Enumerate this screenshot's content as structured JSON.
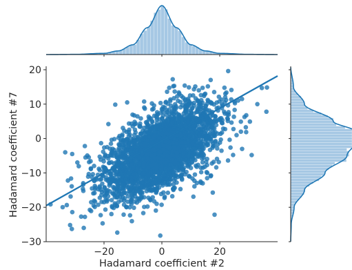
{
  "chart_data": [
    {
      "type": "scatter",
      "title": "",
      "xlabel": "Hadamard coefficient #2",
      "ylabel": "Hadamard coefficient #7",
      "xlim": [
        -40,
        40
      ],
      "ylim": [
        -30,
        21
      ],
      "xticks": [
        -20,
        0,
        20
      ],
      "yticks": [
        -30,
        -20,
        -10,
        0,
        10,
        20
      ],
      "grid": false,
      "legend": "none",
      "colors": {
        "points": "#1f77b4",
        "regression_line": "#1f77b4",
        "histogram_fill": "#a6c8e4"
      },
      "regression_line": {
        "from": {
          "x": -40,
          "y": -19.5
        },
        "to": {
          "x": 40,
          "y": 18.2
        }
      },
      "point_cloud": {
        "n_points": 3000,
        "x_mean": 0,
        "x_std": 9.5,
        "y_mean": -3.5,
        "y_std": 6.3,
        "correlation": 0.6
      },
      "sample_points": [
        {
          "x": -27,
          "y": -26
        },
        {
          "x": -31,
          "y": -4.5
        },
        {
          "x": 33,
          "y": 10
        },
        {
          "x": -12,
          "y": 10.5
        },
        {
          "x": 15,
          "y": 13
        },
        {
          "x": -20,
          "y": -18.5
        }
      ]
    },
    {
      "type": "area",
      "role": "top-marginal-histogram",
      "variable": "Hadamard coefficient #2",
      "kde": {
        "x": [
          -40,
          -30,
          -20,
          -15,
          -10,
          -5,
          0,
          5,
          10,
          15,
          20,
          30,
          40
        ],
        "density": [
          0.0,
          0.004,
          0.025,
          0.075,
          0.2,
          0.55,
          1.0,
          0.55,
          0.2,
          0.075,
          0.025,
          0.004,
          0.0
        ]
      }
    },
    {
      "type": "area",
      "role": "right-marginal-histogram",
      "variable": "Hadamard coefficient #7",
      "kde": {
        "y": [
          -30,
          -25,
          -20,
          -15,
          -10,
          -5,
          0,
          2,
          5,
          10,
          15,
          21
        ],
        "density": [
          0.0,
          0.008,
          0.05,
          0.2,
          0.5,
          0.82,
          1.0,
          0.95,
          0.62,
          0.2,
          0.04,
          0.0
        ]
      }
    }
  ]
}
